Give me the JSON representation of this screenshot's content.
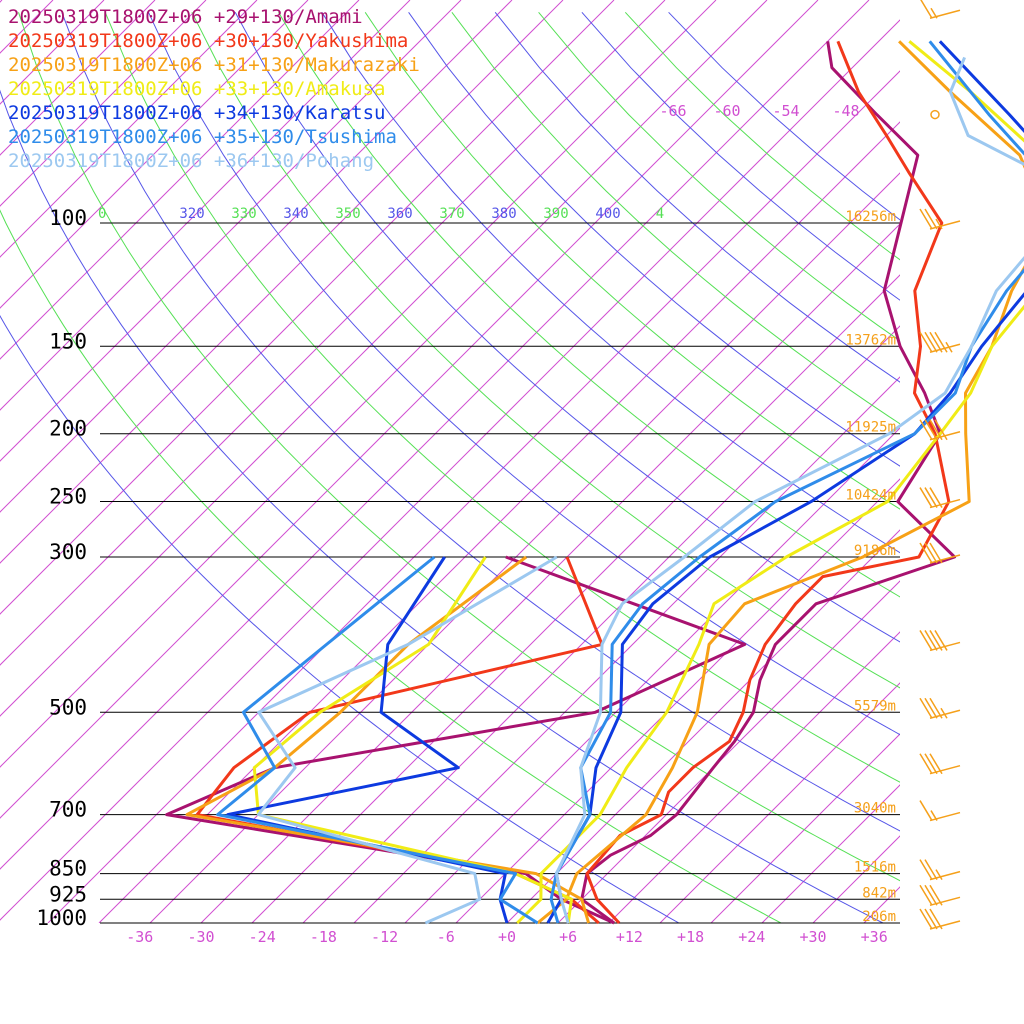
{
  "chart_data": {
    "type": "line",
    "title": "",
    "colors": {
      "isobar": "#000000",
      "isotherm": "#d14fd1",
      "dry_adiabat_labeled": "#5656e8",
      "moist_adiabat_labeled": "#55e055",
      "height_label": "#f5a01a",
      "wind_barb": "#f5a01a"
    },
    "pressure_levels": [
      1000,
      925,
      850,
      700,
      500,
      300,
      250,
      200,
      150,
      100
    ],
    "pressure_labels": [
      "1000",
      "925",
      "850",
      "700",
      "500",
      "300",
      "250",
      "200",
      "150",
      "100"
    ],
    "temperature_ticks": [
      "-36",
      "-30",
      "-24",
      "-18",
      "-12",
      "-6",
      "+0",
      "+6",
      "+12",
      "+18",
      "+24",
      "+30",
      "+36"
    ],
    "top_isotherm_labels": [
      "-66",
      "-60",
      "-54",
      "-48"
    ],
    "height_labels": [
      {
        "p": 1000,
        "label": "206m"
      },
      {
        "p": 925,
        "label": "842m"
      },
      {
        "p": 850,
        "label": "1516m"
      },
      {
        "p": 700,
        "label": "3040m"
      },
      {
        "p": 500,
        "label": "5579m"
      },
      {
        "p": 300,
        "label": "9186m"
      },
      {
        "p": 250,
        "label": "10424m"
      },
      {
        "p": 200,
        "label": "11925m"
      },
      {
        "p": 150,
        "label": "13762m"
      },
      {
        "p": 100,
        "label": "16256m"
      }
    ],
    "theta_labels": [
      {
        "label": "0",
        "color": "#55e055"
      },
      {
        "label": "320",
        "color": "#5656e8"
      },
      {
        "label": "330",
        "color": "#55e055"
      },
      {
        "label": "340",
        "color": "#5656e8"
      },
      {
        "label": "350",
        "color": "#55e055"
      },
      {
        "label": "360",
        "color": "#5656e8"
      },
      {
        "label": "370",
        "color": "#55e055"
      },
      {
        "label": "380",
        "color": "#5656e8"
      },
      {
        "label": "390",
        "color": "#55e055"
      },
      {
        "label": "400",
        "color": "#5656e8"
      },
      {
        "label": "4",
        "color": "#55e055"
      }
    ],
    "series": [
      {
        "name": "20250319T1800Z+06 +29+130/Amami",
        "color": "#a8126f",
        "temp_points": [
          [
            1000,
            10.5
          ],
          [
            925,
            5.0
          ],
          [
            850,
            3.0
          ],
          [
            800,
            3.5
          ],
          [
            750,
            5.5
          ],
          [
            700,
            6.0
          ],
          [
            600,
            5.0
          ],
          [
            550,
            4.5
          ],
          [
            500,
            3.5
          ],
          [
            450,
            1.0
          ],
          [
            400,
            -1.0
          ],
          [
            350,
            -1.0
          ],
          [
            300,
            8.0
          ],
          [
            250,
            -3.0
          ],
          [
            200,
            -5.5
          ],
          [
            175,
            -11.0
          ],
          [
            150,
            -18.0
          ],
          [
            125,
            -25.0
          ],
          [
            100,
            -30.0
          ],
          [
            80,
            -35.0
          ],
          [
            70,
            -43.0
          ],
          [
            60,
            -52.0
          ],
          [
            55,
            -55.0
          ]
        ],
        "dew_points": [
          [
            1000,
            10.5
          ],
          [
            925,
            3.0
          ],
          [
            850,
            -3.0
          ],
          [
            700,
            -44.0
          ],
          [
            600,
            -38.0
          ],
          [
            500,
            -12.0
          ],
          [
            400,
            -4.0
          ],
          [
            300,
            -36.0
          ]
        ]
      },
      {
        "name": "20250319T1800Z+06 +30+130/Yakushima",
        "color": "#f2381a",
        "temp_points": [
          [
            1000,
            11.0
          ],
          [
            925,
            6.5
          ],
          [
            850,
            3.0
          ],
          [
            750,
            2.5
          ],
          [
            700,
            4.5
          ],
          [
            650,
            3.0
          ],
          [
            600,
            3.0
          ],
          [
            550,
            4.0
          ],
          [
            500,
            2.5
          ],
          [
            450,
            0.0
          ],
          [
            400,
            -2.0
          ],
          [
            350,
            -3.0
          ],
          [
            320,
            -3.0
          ],
          [
            300,
            4.5
          ],
          [
            250,
            2.0
          ],
          [
            200,
            -6.0
          ],
          [
            175,
            -12.0
          ],
          [
            150,
            -16.0
          ],
          [
            125,
            -22.0
          ],
          [
            100,
            -26.0
          ],
          [
            85,
            -34.0
          ],
          [
            75,
            -40.0
          ],
          [
            65,
            -47.0
          ],
          [
            55,
            -54.0
          ]
        ],
        "dew_points": [
          [
            1000,
            9.0
          ],
          [
            925,
            4.0
          ],
          [
            850,
            -4.0
          ],
          [
            700,
            -41.0
          ],
          [
            600,
            -42.0
          ],
          [
            500,
            -40.0
          ],
          [
            400,
            -18.0
          ],
          [
            300,
            -30.0
          ]
        ]
      },
      {
        "name": "20250319T1800Z+06 +31+130/Makurazaki",
        "color": "#f7a116",
        "temp_points": [
          [
            1000,
            3.0
          ],
          [
            925,
            3.5
          ],
          [
            850,
            2.0
          ],
          [
            700,
            3.0
          ],
          [
            600,
            1.0
          ],
          [
            500,
            -2.0
          ],
          [
            400,
            -7.5
          ],
          [
            350,
            -8.0
          ],
          [
            300,
            -1.0
          ],
          [
            250,
            4.0
          ],
          [
            200,
            -3.0
          ],
          [
            175,
            -7.0
          ],
          [
            150,
            -9.0
          ],
          [
            125,
            -12.5
          ],
          [
            100,
            -15.5
          ],
          [
            80,
            -25.0
          ],
          [
            65,
            -38.0
          ],
          [
            55,
            -48.0
          ]
        ],
        "dew_points": [
          [
            1000,
            8.0
          ],
          [
            925,
            5.0
          ],
          [
            850,
            -2.0
          ],
          [
            700,
            -42.0
          ],
          [
            600,
            -38.0
          ],
          [
            500,
            -37.0
          ],
          [
            400,
            -37.0
          ],
          [
            300,
            -34.0
          ]
        ]
      },
      {
        "name": "20250319T1800Z+06 +33+130/Amakusa",
        "color": "#f0ec16",
        "temp_points": [
          [
            1000,
            1.0
          ],
          [
            925,
            1.0
          ],
          [
            850,
            -1.5
          ],
          [
            700,
            -1.5
          ],
          [
            600,
            -3.5
          ],
          [
            500,
            -5.0
          ],
          [
            400,
            -8.5
          ],
          [
            350,
            -11.0
          ],
          [
            300,
            -8.5
          ],
          [
            250,
            -4.0
          ],
          [
            200,
            -5.5
          ],
          [
            175,
            -6.5
          ],
          [
            150,
            -9.0
          ],
          [
            125,
            -10.0
          ],
          [
            100,
            -11.5
          ],
          [
            80,
            -23.0
          ],
          [
            65,
            -36.0
          ],
          [
            55,
            -47.0
          ]
        ],
        "dew_points": [
          [
            1000,
            6.0
          ],
          [
            925,
            4.0
          ],
          [
            850,
            -4.0
          ],
          [
            700,
            -35.0
          ],
          [
            600,
            -40.0
          ],
          [
            500,
            -39.0
          ],
          [
            400,
            -35.0
          ],
          [
            300,
            -38.0
          ]
        ]
      },
      {
        "name": "20250319T1800Z+06 +34+130/Karatsu",
        "color": "#0d3ae0",
        "temp_points": [
          [
            1000,
            4.0
          ],
          [
            925,
            3.0
          ],
          [
            850,
            0.0
          ],
          [
            700,
            -2.5
          ],
          [
            600,
            -6.5
          ],
          [
            500,
            -9.5
          ],
          [
            400,
            -16.0
          ],
          [
            350,
            -17.0
          ],
          [
            300,
            -16.0
          ],
          [
            250,
            -11.5
          ],
          [
            200,
            -8.0
          ],
          [
            175,
            -8.5
          ],
          [
            150,
            -10.0
          ],
          [
            125,
            -11.0
          ],
          [
            100,
            -11.5
          ],
          [
            85,
            -19.0
          ],
          [
            70,
            -30.0
          ],
          [
            55,
            -44.0
          ]
        ],
        "dew_points": [
          [
            1000,
            0.0
          ],
          [
            925,
            -3.0
          ],
          [
            850,
            -5.0
          ],
          [
            700,
            -38.0
          ],
          [
            600,
            -20.0
          ],
          [
            500,
            -33.0
          ],
          [
            400,
            -39.0
          ],
          [
            300,
            -42.0
          ]
        ]
      },
      {
        "name": "20250319T1800Z+06 +35+130/Tsushima",
        "color": "#2f8cea",
        "temp_points": [
          [
            1000,
            5.0
          ],
          [
            925,
            2.0
          ],
          [
            850,
            0.0
          ],
          [
            700,
            -2.5
          ],
          [
            600,
            -8.0
          ],
          [
            500,
            -10.5
          ],
          [
            400,
            -17.0
          ],
          [
            350,
            -18.0
          ],
          [
            300,
            -17.0
          ],
          [
            250,
            -15.0
          ],
          [
            200,
            -8.0
          ],
          [
            175,
            -8.0
          ],
          [
            150,
            -11.0
          ],
          [
            125,
            -13.0
          ],
          [
            100,
            -14.0
          ],
          [
            85,
            -21.0
          ],
          [
            70,
            -32.0
          ],
          [
            55,
            -45.0
          ]
        ],
        "dew_points": [
          [
            1000,
            3.0
          ],
          [
            925,
            -3.0
          ],
          [
            850,
            -4.0
          ],
          [
            700,
            -39.0
          ],
          [
            600,
            -38.0
          ],
          [
            500,
            -46.5
          ],
          [
            400,
            -45.0
          ],
          [
            300,
            -43.0
          ]
        ]
      },
      {
        "name": "20250319T1800Z+06 +36+130/Pohang",
        "color": "#9cc8f0",
        "temp_points": [
          [
            1000,
            6.0
          ],
          [
            925,
            3.0
          ],
          [
            850,
            0.0
          ],
          [
            700,
            -3.0
          ],
          [
            600,
            -8.0
          ],
          [
            500,
            -11.5
          ],
          [
            400,
            -18.0
          ],
          [
            350,
            -20.0
          ],
          [
            300,
            -18.5
          ],
          [
            250,
            -17.0
          ],
          [
            200,
            -10.5
          ],
          [
            175,
            -9.0
          ],
          [
            150,
            -11.0
          ],
          [
            125,
            -14.0
          ],
          [
            100,
            -15.0
          ],
          [
            85,
            -21.0
          ],
          [
            75,
            -32.0
          ],
          [
            65,
            -38.0
          ],
          [
            58,
            -40.0
          ]
        ],
        "dew_points": [
          [
            1000,
            -8.0
          ],
          [
            925,
            -5.0
          ],
          [
            850,
            -8.0
          ],
          [
            700,
            -35.0
          ],
          [
            600,
            -36.0
          ],
          [
            500,
            -45.0
          ],
          [
            400,
            -37.0
          ],
          [
            300,
            -31.0
          ]
        ]
      }
    ],
    "wind_barbs": [
      {
        "p": 1000,
        "speed_kt": 30
      },
      {
        "p": 925,
        "speed_kt": 30
      },
      {
        "p": 850,
        "speed_kt": 25
      },
      {
        "p": 700,
        "speed_kt": 15
      },
      {
        "p": 600,
        "speed_kt": 30
      },
      {
        "p": 500,
        "speed_kt": 35
      },
      {
        "p": 400,
        "speed_kt": 40
      },
      {
        "p": 300,
        "speed_kt": 30
      },
      {
        "p": 250,
        "speed_kt": 30
      },
      {
        "p": 200,
        "speed_kt": 40
      },
      {
        "p": 150,
        "speed_kt": 45
      },
      {
        "p": 100,
        "speed_kt": 25
      },
      {
        "p": 70,
        "speed_kt": 0
      },
      {
        "p": 50,
        "speed_kt": 15
      }
    ]
  }
}
